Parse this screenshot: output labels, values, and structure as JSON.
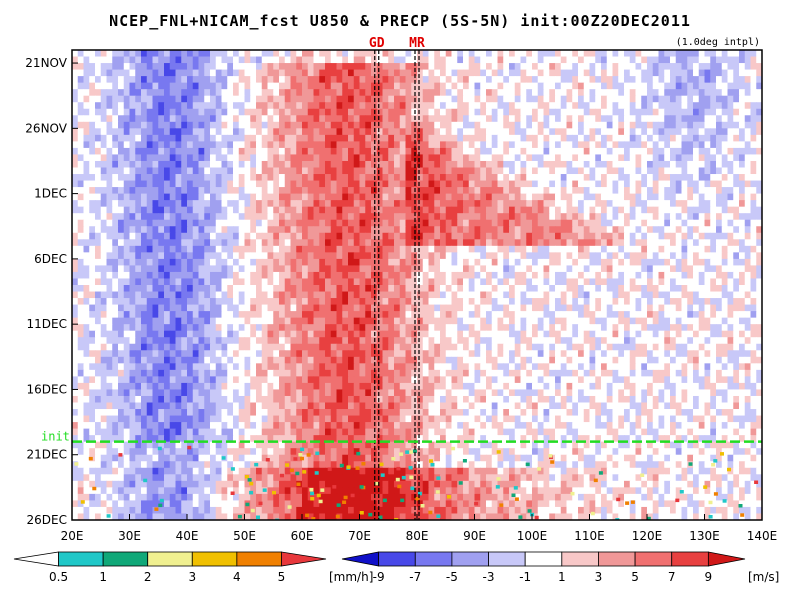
{
  "title": "NCEP_FNL+NICAM_fcst U850 & PRECP (5S-5N) init:00Z20DEC2011",
  "subtitle": "(1.0deg intpl)",
  "chart_data": {
    "type": "heatmap",
    "title": "NCEP_FNL+NICAM_fcst U850 & PRECP (5S-5N) init:00Z20DEC2011",
    "xlabel": "",
    "ylabel": "",
    "x_range": [
      "20E",
      "140E"
    ],
    "x_ticks": [
      "20E",
      "30E",
      "40E",
      "50E",
      "60E",
      "70E",
      "80E",
      "90E",
      "100E",
      "110E",
      "120E",
      "130E",
      "140E"
    ],
    "y_range": [
      "20NOV2011",
      "26DEC2011"
    ],
    "y_ticks": [
      "21NOV",
      "26NOV",
      "1DEC",
      "6DEC",
      "11DEC",
      "16DEC",
      "21DEC",
      "26DEC"
    ],
    "markers": [
      {
        "label": "GD",
        "lon": 73,
        "style": "dashed"
      },
      {
        "label": "MR",
        "lon": 80,
        "style": "dashed"
      }
    ],
    "init_line": {
      "label": "init",
      "date": "20DEC2011",
      "color": "#22dd22"
    },
    "u850_features": [
      {
        "sign": "westerly",
        "lon_start": 62,
        "lon_end": 80,
        "date_start": "22NOV",
        "date_end": "26DEC"
      },
      {
        "sign": "westerly",
        "lon_start": 80,
        "lon_end": 138,
        "date_start": "25NOV",
        "date_end": "8DEC"
      },
      {
        "sign": "easterly",
        "lon_start": 25,
        "lon_end": 48,
        "date_start": "20NOV",
        "date_end": "19DEC"
      }
    ],
    "colorbars": [
      {
        "name": "precipitation",
        "unit": "[mm/h]",
        "ticks": [
          "0.5",
          "1",
          "2",
          "3",
          "4",
          "5"
        ],
        "colors": [
          "#ffffff",
          "#20c8c8",
          "#10a878",
          "#f0f090",
          "#f0c000",
          "#f08000",
          "#e8383c"
        ]
      },
      {
        "name": "u850",
        "unit": "[m/s]",
        "ticks": [
          "-9",
          "-7",
          "-5",
          "-3",
          "-1",
          "1",
          "3",
          "5",
          "7",
          "9"
        ],
        "colors": [
          "#1010c8",
          "#4848e8",
          "#7878f0",
          "#a0a0f0",
          "#c8c8f8",
          "#ffffff",
          "#f8c8c8",
          "#f09898",
          "#f07070",
          "#e84040",
          "#d01818"
        ]
      }
    ]
  }
}
